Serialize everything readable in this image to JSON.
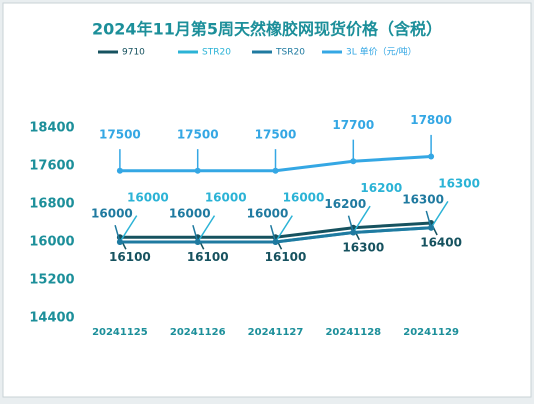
{
  "chart_data": {
    "type": "line",
    "title": "2024年11月第5周天然橡胶网现货价格（含税）",
    "categories": [
      "20241125",
      "20241126",
      "20241127",
      "20241128",
      "20241129"
    ],
    "series": [
      {
        "name": "9710",
        "color": "#16525f",
        "values": [
          16100,
          16100,
          16100,
          16300,
          16400
        ]
      },
      {
        "name": "STR20",
        "color": "#2bb3d6",
        "values": [
          16000,
          16000,
          16000,
          16200,
          16300
        ]
      },
      {
        "name": "TSR20",
        "color": "#1f7aa0",
        "values": [
          16000,
          16000,
          16000,
          16200,
          16300
        ]
      },
      {
        "name": "3L 单价（元/吨）",
        "color": "#34a7e4",
        "values": [
          17500,
          17500,
          17500,
          17700,
          17800
        ]
      }
    ],
    "ylim": [
      14400,
      18400
    ],
    "yticks": [
      14400,
      15200,
      16000,
      16800,
      17600,
      18400
    ],
    "legend": "top"
  }
}
